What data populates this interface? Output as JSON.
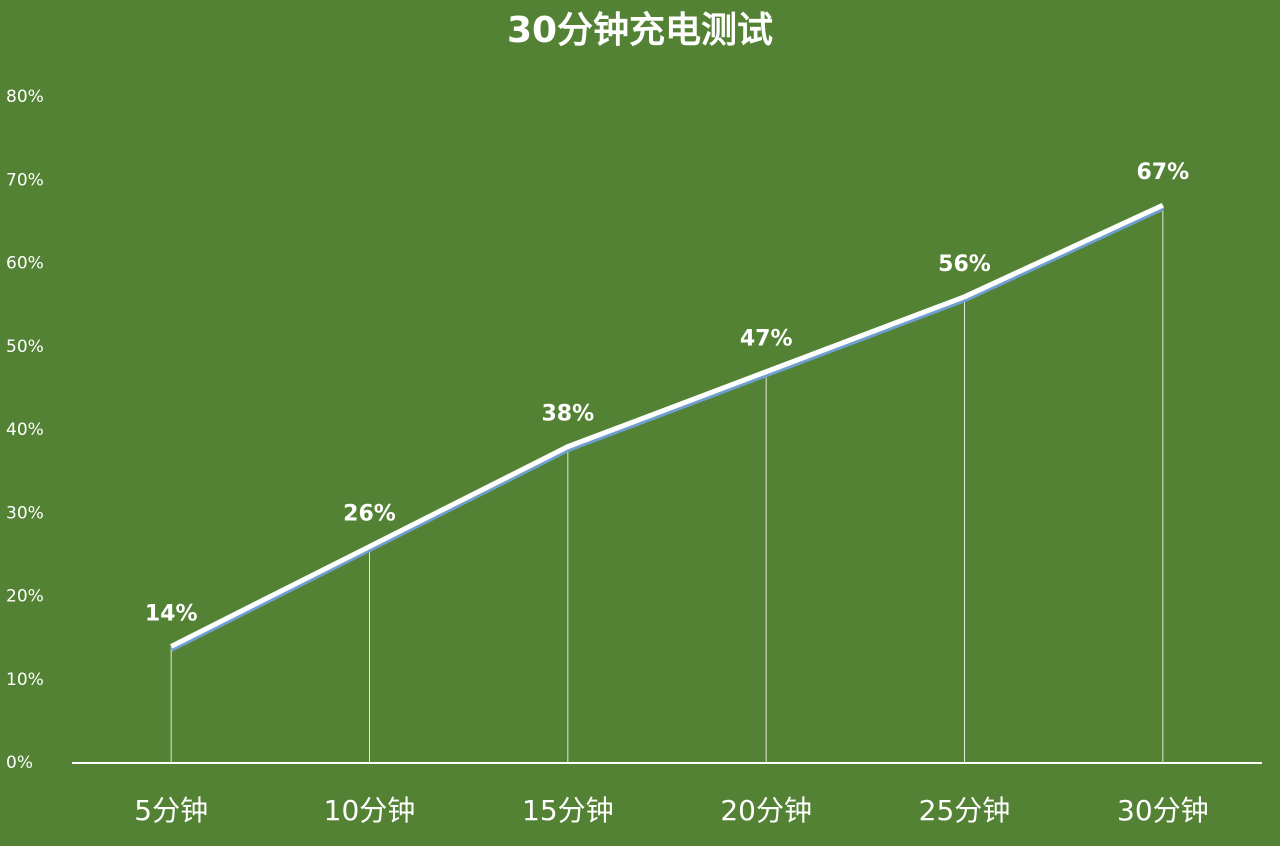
{
  "chart_data": {
    "type": "line",
    "title": "30分钟充电测试",
    "categories": [
      "5分钟",
      "10分钟",
      "15分钟",
      "20分钟",
      "25分钟",
      "30分钟"
    ],
    "values": [
      14,
      26,
      38,
      47,
      56,
      67
    ],
    "value_labels": [
      "14%",
      "26%",
      "38%",
      "47%",
      "56%",
      "67%"
    ],
    "color": "#ffffff",
    "ylim": [
      0,
      80
    ],
    "yticks": [
      {
        "value": 0,
        "label": "0%"
      },
      {
        "value": 10,
        "label": "10%"
      },
      {
        "value": 20,
        "label": "20%"
      },
      {
        "value": 30,
        "label": "30%"
      },
      {
        "value": 40,
        "label": "40%"
      },
      {
        "value": 50,
        "label": "50%"
      },
      {
        "value": 60,
        "label": "60%"
      },
      {
        "value": 70,
        "label": "70%"
      },
      {
        "value": 80,
        "label": "80%"
      }
    ],
    "grid": false
  }
}
